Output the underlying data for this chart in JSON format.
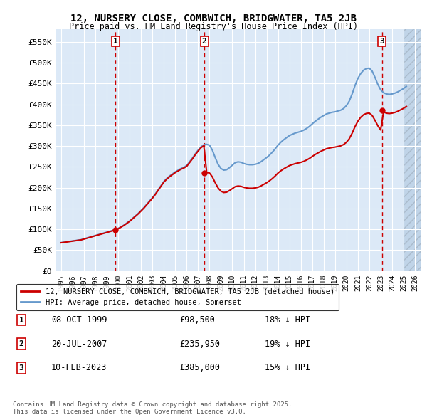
{
  "title": "12, NURSERY CLOSE, COMBWICH, BRIDGWATER, TA5 2JB",
  "subtitle": "Price paid vs. HM Land Registry's House Price Index (HPI)",
  "ylim": [
    0,
    580000
  ],
  "yticks": [
    0,
    50000,
    100000,
    150000,
    200000,
    250000,
    300000,
    350000,
    400000,
    450000,
    500000,
    550000
  ],
  "ytick_labels": [
    "£0",
    "£50K",
    "£100K",
    "£150K",
    "£200K",
    "£250K",
    "£300K",
    "£350K",
    "£400K",
    "£450K",
    "£500K",
    "£550K"
  ],
  "xlim_start": 1994.5,
  "xlim_end": 2026.5,
  "xticks": [
    1995,
    1996,
    1997,
    1998,
    1999,
    2000,
    2001,
    2002,
    2003,
    2004,
    2005,
    2006,
    2007,
    2008,
    2009,
    2010,
    2011,
    2012,
    2013,
    2014,
    2015,
    2016,
    2017,
    2018,
    2019,
    2020,
    2021,
    2022,
    2023,
    2024,
    2025,
    2026
  ],
  "bg_color": "#dce9f7",
  "future_hatch_color": "#c0d4e8",
  "red_line_color": "#cc0000",
  "blue_line_color": "#6699cc",
  "vline_color": "#cc0000",
  "grid_color": "#ffffff",
  "sale_dates": [
    1999.77,
    2007.55,
    2023.11
  ],
  "sale_prices": [
    98500,
    235950,
    385000
  ],
  "sale_labels": [
    "1",
    "2",
    "3"
  ],
  "legend_red_label": "12, NURSERY CLOSE, COMBWICH, BRIDGWATER, TA5 2JB (detached house)",
  "legend_blue_label": "HPI: Average price, detached house, Somerset",
  "table_rows": [
    {
      "num": "1",
      "date": "08-OCT-1999",
      "price": "£98,500",
      "hpi": "18% ↓ HPI"
    },
    {
      "num": "2",
      "date": "20-JUL-2007",
      "price": "£235,950",
      "hpi": "19% ↓ HPI"
    },
    {
      "num": "3",
      "date": "10-FEB-2023",
      "price": "£385,000",
      "hpi": "15% ↓ HPI"
    }
  ],
  "footer": "Contains HM Land Registry data © Crown copyright and database right 2025.\nThis data is licensed under the Open Government Licence v3.0.",
  "hpi_years": [
    1995,
    1995.25,
    1995.5,
    1995.75,
    1996,
    1996.25,
    1996.5,
    1996.75,
    1997,
    1997.25,
    1997.5,
    1997.75,
    1998,
    1998.25,
    1998.5,
    1998.75,
    1999,
    1999.25,
    1999.5,
    1999.75,
    2000,
    2000.25,
    2000.5,
    2000.75,
    2001,
    2001.25,
    2001.5,
    2001.75,
    2002,
    2002.25,
    2002.5,
    2002.75,
    2003,
    2003.25,
    2003.5,
    2003.75,
    2004,
    2004.25,
    2004.5,
    2004.75,
    2005,
    2005.25,
    2005.5,
    2005.75,
    2006,
    2006.25,
    2006.5,
    2006.75,
    2007,
    2007.25,
    2007.5,
    2007.75,
    2008,
    2008.25,
    2008.5,
    2008.75,
    2009,
    2009.25,
    2009.5,
    2009.75,
    2010,
    2010.25,
    2010.5,
    2010.75,
    2011,
    2011.25,
    2011.5,
    2011.75,
    2012,
    2012.25,
    2012.5,
    2012.75,
    2013,
    2013.25,
    2013.5,
    2013.75,
    2014,
    2014.25,
    2014.5,
    2014.75,
    2015,
    2015.25,
    2015.5,
    2015.75,
    2016,
    2016.25,
    2016.5,
    2016.75,
    2017,
    2017.25,
    2017.5,
    2017.75,
    2018,
    2018.25,
    2018.5,
    2018.75,
    2019,
    2019.25,
    2019.5,
    2019.75,
    2020,
    2020.25,
    2020.5,
    2020.75,
    2021,
    2021.25,
    2021.5,
    2021.75,
    2022,
    2022.25,
    2022.5,
    2022.75,
    2023,
    2023.25,
    2023.5,
    2023.75,
    2024,
    2024.25,
    2024.5,
    2024.75,
    2025,
    2025.25
  ],
  "hpi_values": [
    68000,
    69000,
    70000,
    71000,
    72000,
    73000,
    74000,
    75000,
    77000,
    79000,
    81000,
    83000,
    85000,
    87000,
    89000,
    91000,
    93000,
    95000,
    97000,
    99000,
    102000,
    106000,
    110000,
    115000,
    120000,
    126000,
    132000,
    138000,
    145000,
    152000,
    160000,
    168000,
    176000,
    185000,
    195000,
    205000,
    215000,
    222000,
    228000,
    233000,
    238000,
    242000,
    246000,
    249000,
    253000,
    262000,
    271000,
    281000,
    290000,
    298000,
    303000,
    304000,
    302000,
    290000,
    272000,
    256000,
    246000,
    242000,
    243000,
    248000,
    254000,
    260000,
    262000,
    261000,
    258000,
    256000,
    255000,
    255000,
    256000,
    258000,
    262000,
    267000,
    272000,
    278000,
    285000,
    293000,
    302000,
    309000,
    315000,
    320000,
    325000,
    328000,
    331000,
    333000,
    335000,
    338000,
    342000,
    347000,
    353000,
    359000,
    364000,
    369000,
    373000,
    377000,
    379000,
    381000,
    382000,
    384000,
    386000,
    390000,
    397000,
    408000,
    425000,
    445000,
    462000,
    474000,
    482000,
    486000,
    487000,
    480000,
    465000,
    448000,
    435000,
    428000,
    425000,
    424000,
    425000,
    427000,
    430000,
    434000,
    438000,
    443000
  ],
  "future_start": 2025.0
}
